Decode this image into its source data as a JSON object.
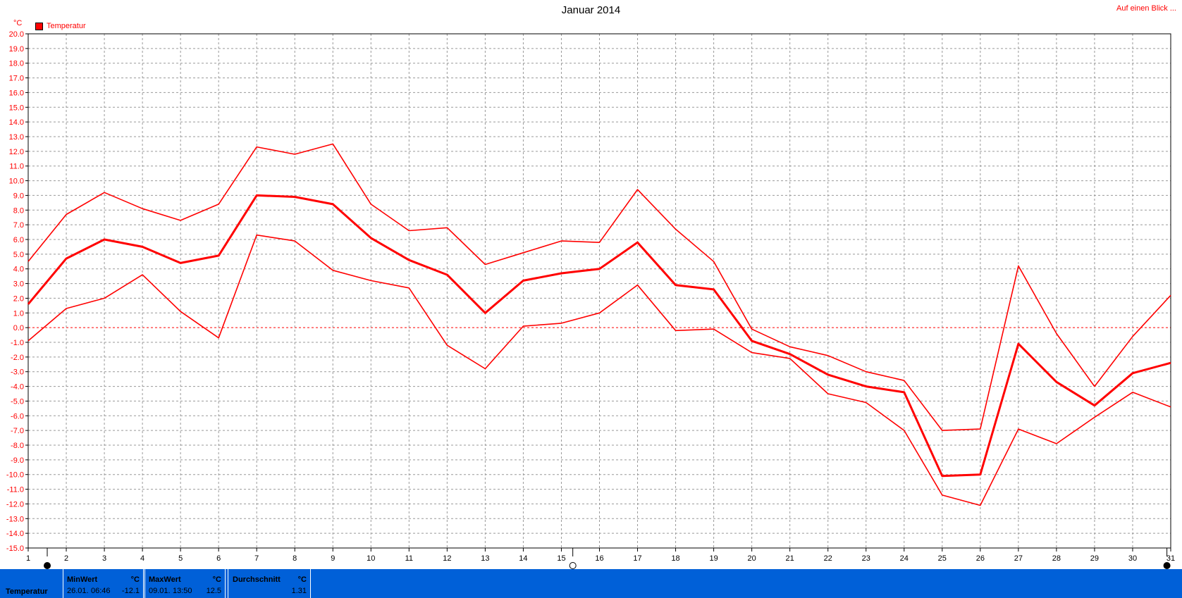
{
  "title": "Januar 2014",
  "link_label": "Auf einen Blick ...",
  "unit_label": "°C",
  "legend_label": "Temperatur",
  "colors": {
    "series": "#ff0000",
    "stats_bar": "#0060d8",
    "grid": "#999999"
  },
  "chart_data": {
    "type": "line",
    "title": "Januar 2014",
    "x": [
      1,
      2,
      3,
      4,
      5,
      6,
      7,
      8,
      9,
      10,
      11,
      12,
      13,
      14,
      15,
      16,
      17,
      18,
      19,
      20,
      21,
      22,
      23,
      24,
      25,
      26,
      27,
      28,
      29,
      30,
      31
    ],
    "ylim": [
      -15,
      20
    ],
    "ytick_step": 1,
    "ylabel": "°C",
    "grid": true,
    "legend_position": "top-left",
    "series": [
      {
        "name": "Temperatur",
        "role": "max",
        "values": [
          4.5,
          7.7,
          9.2,
          8.1,
          7.3,
          8.4,
          12.3,
          11.8,
          12.5,
          8.4,
          6.6,
          6.8,
          4.3,
          5.1,
          5.9,
          5.8,
          9.4,
          6.7,
          4.5,
          -0.1,
          -1.3,
          -1.9,
          -3.0,
          -3.6,
          -7.0,
          -6.9,
          4.2,
          -0.4,
          -4.0,
          -0.6,
          2.2
        ]
      },
      {
        "name": "Temperatur",
        "role": "mean",
        "values": [
          1.6,
          4.7,
          6.0,
          5.5,
          4.4,
          4.9,
          9.0,
          8.9,
          8.4,
          6.1,
          4.6,
          3.6,
          1.0,
          3.2,
          3.7,
          4.0,
          5.8,
          2.9,
          2.6,
          -0.9,
          -1.8,
          -3.2,
          -4.0,
          -4.4,
          -10.1,
          -10.0,
          -1.1,
          -3.7,
          -5.3,
          -3.1,
          -2.4
        ]
      },
      {
        "name": "Temperatur",
        "role": "min",
        "values": [
          -0.9,
          1.3,
          2.0,
          3.6,
          1.1,
          -0.7,
          6.3,
          5.9,
          3.9,
          3.2,
          2.7,
          -1.2,
          -2.8,
          0.1,
          0.3,
          1.0,
          2.9,
          -0.2,
          -0.1,
          -1.7,
          -2.1,
          -4.5,
          -5.1,
          -7.0,
          -11.4,
          -12.1,
          -6.9,
          -7.9,
          -6.1,
          -4.4,
          -5.4
        ]
      }
    ]
  },
  "stats": {
    "series_label": "Temperatur",
    "min": {
      "label": "MinWert",
      "unit": "°C",
      "date": "26.01.",
      "time": "06:46",
      "value": "-12.1"
    },
    "max": {
      "label": "MaxWert",
      "unit": "°C",
      "date": "09.01.",
      "time": "13:50",
      "value": "12.5"
    },
    "avg": {
      "label": "Durchschnitt",
      "unit": "°C",
      "value": "1.31"
    }
  }
}
